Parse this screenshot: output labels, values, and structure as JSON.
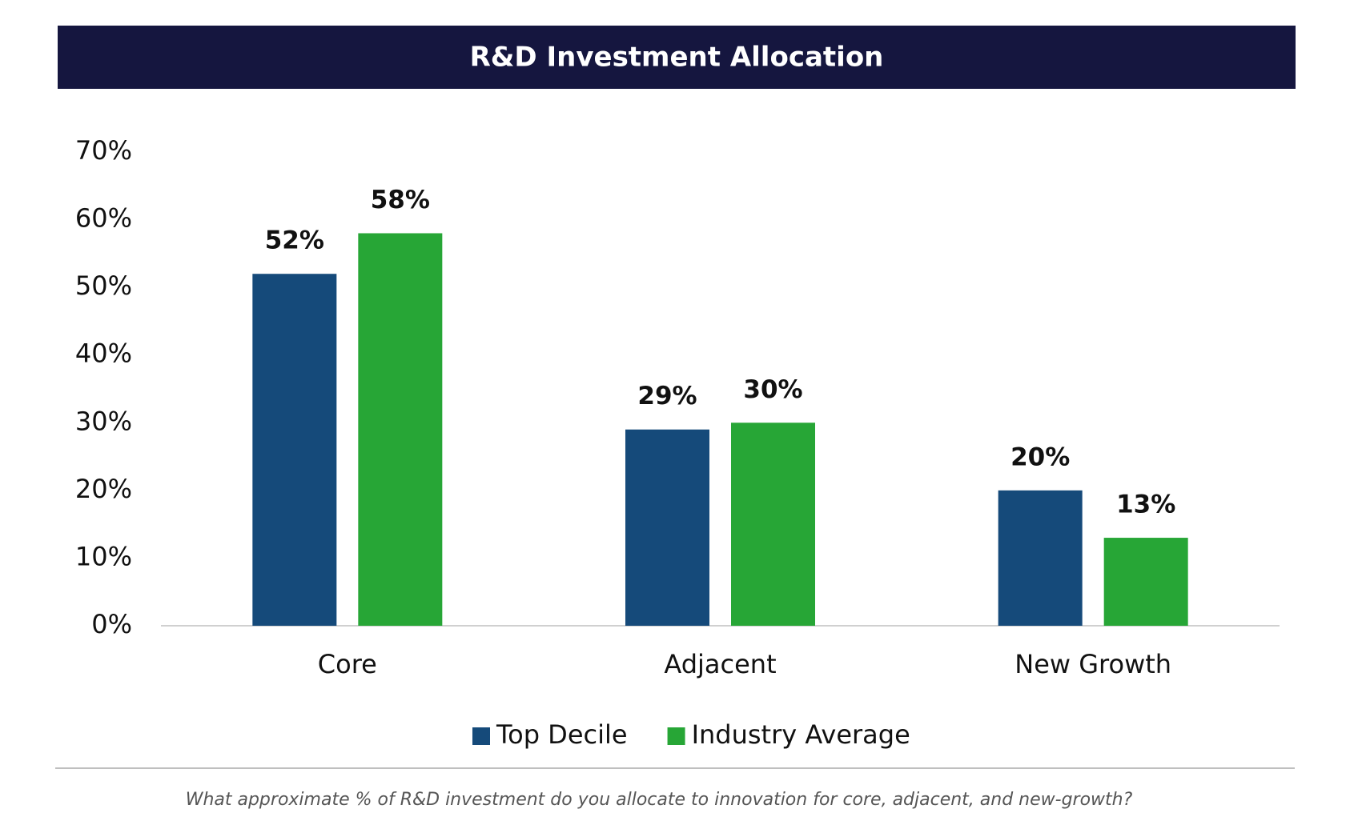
{
  "chart_data": {
    "type": "bar",
    "title": "R&D Investment Allocation",
    "categories": [
      "Core",
      "Adjacent",
      "New Growth"
    ],
    "series": [
      {
        "name": "Top Decile",
        "color": "#154a7a",
        "values": [
          52,
          29,
          20
        ],
        "value_labels": [
          "52%",
          "29%",
          "20%"
        ]
      },
      {
        "name": "Industry Average",
        "color": "#27a636",
        "values": [
          58,
          30,
          13
        ],
        "value_labels": [
          "58%",
          "30%",
          "13%"
        ]
      }
    ],
    "ylim": [
      0,
      70
    ],
    "yticks": [
      {
        "value": 0,
        "label": "0%"
      },
      {
        "value": 10,
        "label": "10%"
      },
      {
        "value": 20,
        "label": "20%"
      },
      {
        "value": 30,
        "label": "30%"
      },
      {
        "value": 40,
        "label": "40%"
      },
      {
        "value": 50,
        "label": "50%"
      },
      {
        "value": 60,
        "label": "60%"
      },
      {
        "value": 70,
        "label": "70%"
      }
    ],
    "grid": false,
    "legend": "bottom",
    "caption": "What approximate % of R&D investment do you allocate to innovation for core, adjacent, and new-growth?"
  }
}
